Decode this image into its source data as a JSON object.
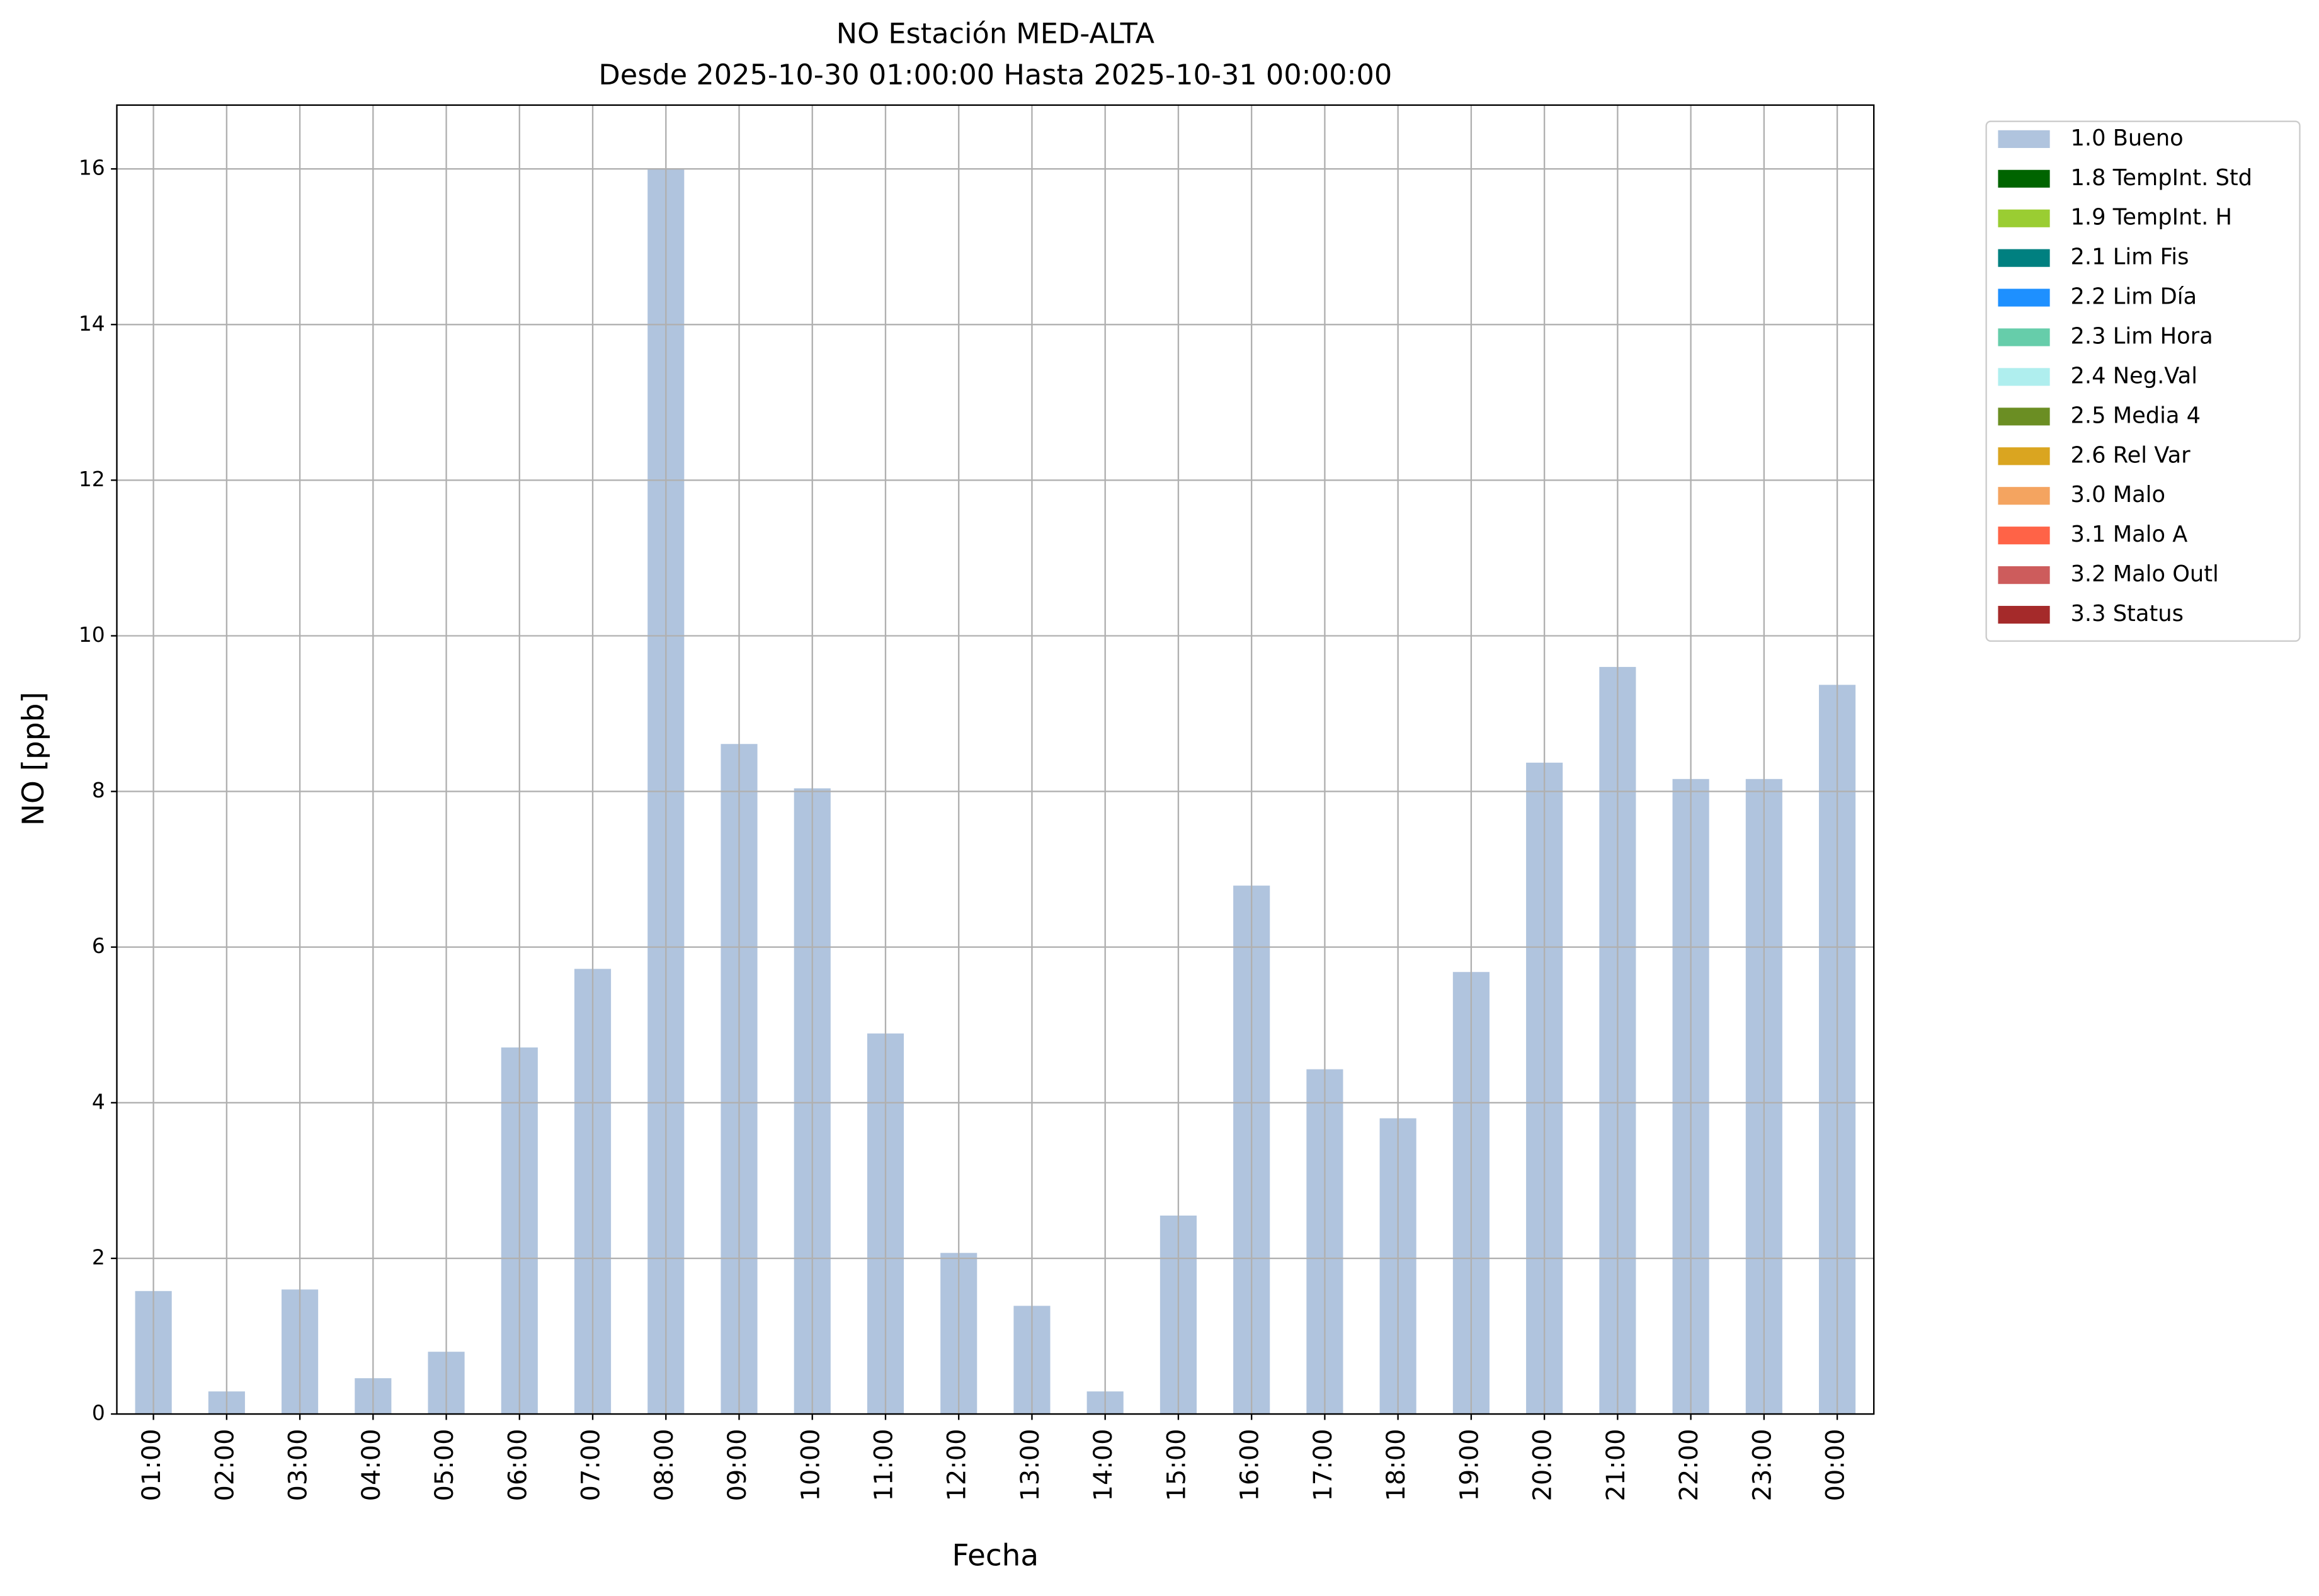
{
  "chart_data": {
    "type": "bar",
    "title": "NO Estación MED-ALTA",
    "subtitle": "Desde 2025-10-30 01:00:00 Hasta 2025-10-31 00:00:00",
    "x_label": "Fecha",
    "y_label": "NO [ppb]",
    "categories": [
      "01:00",
      "02:00",
      "03:00",
      "04:00",
      "05:00",
      "06:00",
      "07:00",
      "08:00",
      "09:00",
      "10:00",
      "11:00",
      "12:00",
      "13:00",
      "14:00",
      "15:00",
      "16:00",
      "17:00",
      "18:00",
      "19:00",
      "20:00",
      "21:00",
      "22:00",
      "23:00",
      "00:00"
    ],
    "series": [
      {
        "name": "1.0 Bueno",
        "color": "#b0c4de",
        "values": [
          1.58,
          0.29,
          1.6,
          0.46,
          0.8,
          4.71,
          5.72,
          16.0,
          8.61,
          8.04,
          4.89,
          2.07,
          1.39,
          0.29,
          2.55,
          6.79,
          4.43,
          3.8,
          5.68,
          8.37,
          9.6,
          8.16,
          8.16,
          9.37
        ]
      }
    ],
    "legend": [
      {
        "name": "1.0 Bueno",
        "color": "#b0c4de"
      },
      {
        "name": "1.8 TempInt. Std",
        "color": "#006400"
      },
      {
        "name": "1.9 TempInt. H",
        "color": "#9acd32"
      },
      {
        "name": "2.1 Lim Fis",
        "color": "#008080"
      },
      {
        "name": "2.2 Lim Día",
        "color": "#1e90ff"
      },
      {
        "name": "2.3 Lim Hora",
        "color": "#66cdaa"
      },
      {
        "name": "2.4 Neg.Val",
        "color": "#afeeee"
      },
      {
        "name": "2.5 Media 4",
        "color": "#6b8e23"
      },
      {
        "name": "2.6 Rel Var",
        "color": "#daa520"
      },
      {
        "name": "3.0 Malo",
        "color": "#f4a460"
      },
      {
        "name": "3.1 Malo A",
        "color": "#ff6347"
      },
      {
        "name": "3.2 Malo Outl",
        "color": "#cd5c5c"
      },
      {
        "name": "3.3 Status",
        "color": "#a52a2a"
      }
    ],
    "legend_position": "outside-upper-right",
    "ylim": [
      0,
      16.82
    ],
    "yticks": [
      0,
      2,
      4,
      6,
      8,
      10,
      12,
      14,
      16
    ],
    "grid": true
  }
}
